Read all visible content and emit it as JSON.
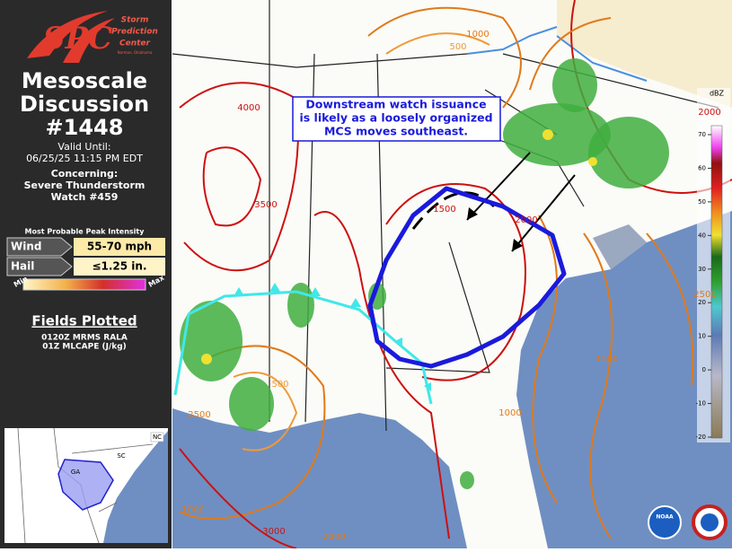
{
  "header": {
    "logo_lines": [
      "Storm",
      "Prediction",
      "Center"
    ],
    "logo_sub": "Norman, Oklahoma",
    "title_lines": [
      "Mesoscale",
      "Discussion",
      "#1448"
    ],
    "valid_label": "Valid Until:",
    "valid_time": "06/25/25 11:15 PM EDT",
    "concerning_label": "Concerning:",
    "concerning_lines": [
      "Severe Thunderstorm",
      "Watch #459"
    ]
  },
  "intensity": {
    "title": "Most Probable Peak Intensity",
    "rows": [
      {
        "label": "Wind",
        "value": "55-70 mph"
      },
      {
        "label": "Hail",
        "value": "≤1.25 in."
      }
    ],
    "min_label": "Min",
    "max_label": "Max"
  },
  "fields": {
    "title": "Fields Plotted",
    "items": [
      "0120Z MRMS RALA",
      "01Z MLCAPE (J/kg)"
    ]
  },
  "inset": {
    "labels": [
      "NC",
      "SC",
      "GA"
    ]
  },
  "map": {
    "annotation_lines": [
      "Downstream watch issuance",
      "is likely as a loosely organized",
      "MCS moves southeast."
    ],
    "contour_labels": [
      "4000",
      "3500",
      "1000",
      "500",
      "2000",
      "2500",
      "1000",
      "1500",
      "500",
      "2500",
      "1000",
      "3000",
      "2000",
      "1500",
      "2000"
    ],
    "logo": "NOAA"
  },
  "dbz_scale": {
    "title": "dBZ",
    "ticks": [
      70,
      60,
      50,
      40,
      30,
      20,
      10,
      0,
      -10,
      -20
    ]
  }
}
